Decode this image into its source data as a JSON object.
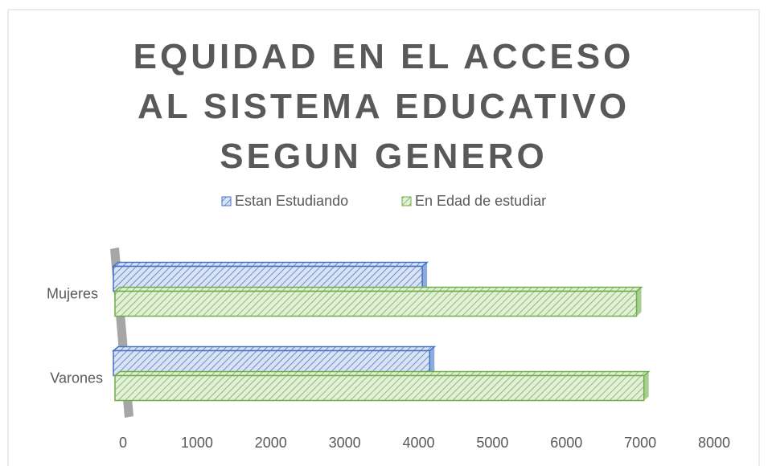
{
  "chart_data": {
    "type": "bar",
    "orientation": "horizontal",
    "three_d": true,
    "title": "EQUIDAD EN EL ACCESO AL SISTEMA EDUCATIVO SEGUN GENERO",
    "categories": [
      "Mujeres",
      "Varones"
    ],
    "series": [
      {
        "name": "Estan Estudiando",
        "color": "#4472c4",
        "fill": "#dae3f3",
        "values": [
          4050,
          4150
        ]
      },
      {
        "name": "En Edad de estudiar",
        "color": "#70ad47",
        "fill": "#e2f0d9",
        "values": [
          6950,
          7050
        ]
      }
    ],
    "xlim": [
      0,
      8000
    ],
    "xticks": [
      0,
      1000,
      2000,
      3000,
      4000,
      5000,
      6000,
      7000,
      8000
    ],
    "legend": "top",
    "grid": false
  }
}
